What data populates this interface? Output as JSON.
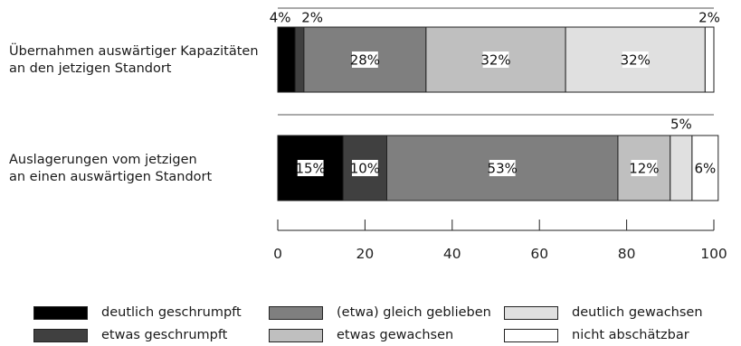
{
  "chart_data": {
    "type": "bar",
    "orientation": "horizontal",
    "stacked": true,
    "categories": [
      [
        "Übernahmen auswärtiger Kapazitäten",
        "an den jetzigen Standort"
      ],
      [
        "Auslagerungen vom jetzigen",
        "an einen auswärtigen Standort"
      ]
    ],
    "series": [
      {
        "name": "deutlich geschrumpft",
        "values": [
          4,
          15
        ],
        "labels": [
          "4%",
          "15%"
        ],
        "color": "#000000"
      },
      {
        "name": "etwas geschrumpft",
        "values": [
          2,
          10
        ],
        "labels": [
          "2%",
          "10%"
        ],
        "color": "#404040"
      },
      {
        "name": "(etwa) gleich geblieben",
        "values": [
          28,
          53
        ],
        "labels": [
          "28%",
          "53%"
        ],
        "color": "#7f7f7f"
      },
      {
        "name": "etwas gewachsen",
        "values": [
          32,
          12
        ],
        "labels": [
          "32%",
          "12%"
        ],
        "color": "#bfbfbf"
      },
      {
        "name": "deutlich gewachsen",
        "values": [
          32,
          5
        ],
        "labels": [
          "32%",
          "5%"
        ],
        "color": "#e0e0e0"
      },
      {
        "name": "nicht abschätzbar",
        "values": [
          2,
          6
        ],
        "labels": [
          "2%",
          "6%"
        ],
        "color": "#ffffff"
      }
    ],
    "xlim": [
      0,
      100
    ],
    "xticks": [
      0,
      20,
      40,
      60,
      80,
      100
    ],
    "grid": false,
    "legend_position": "bottom"
  }
}
